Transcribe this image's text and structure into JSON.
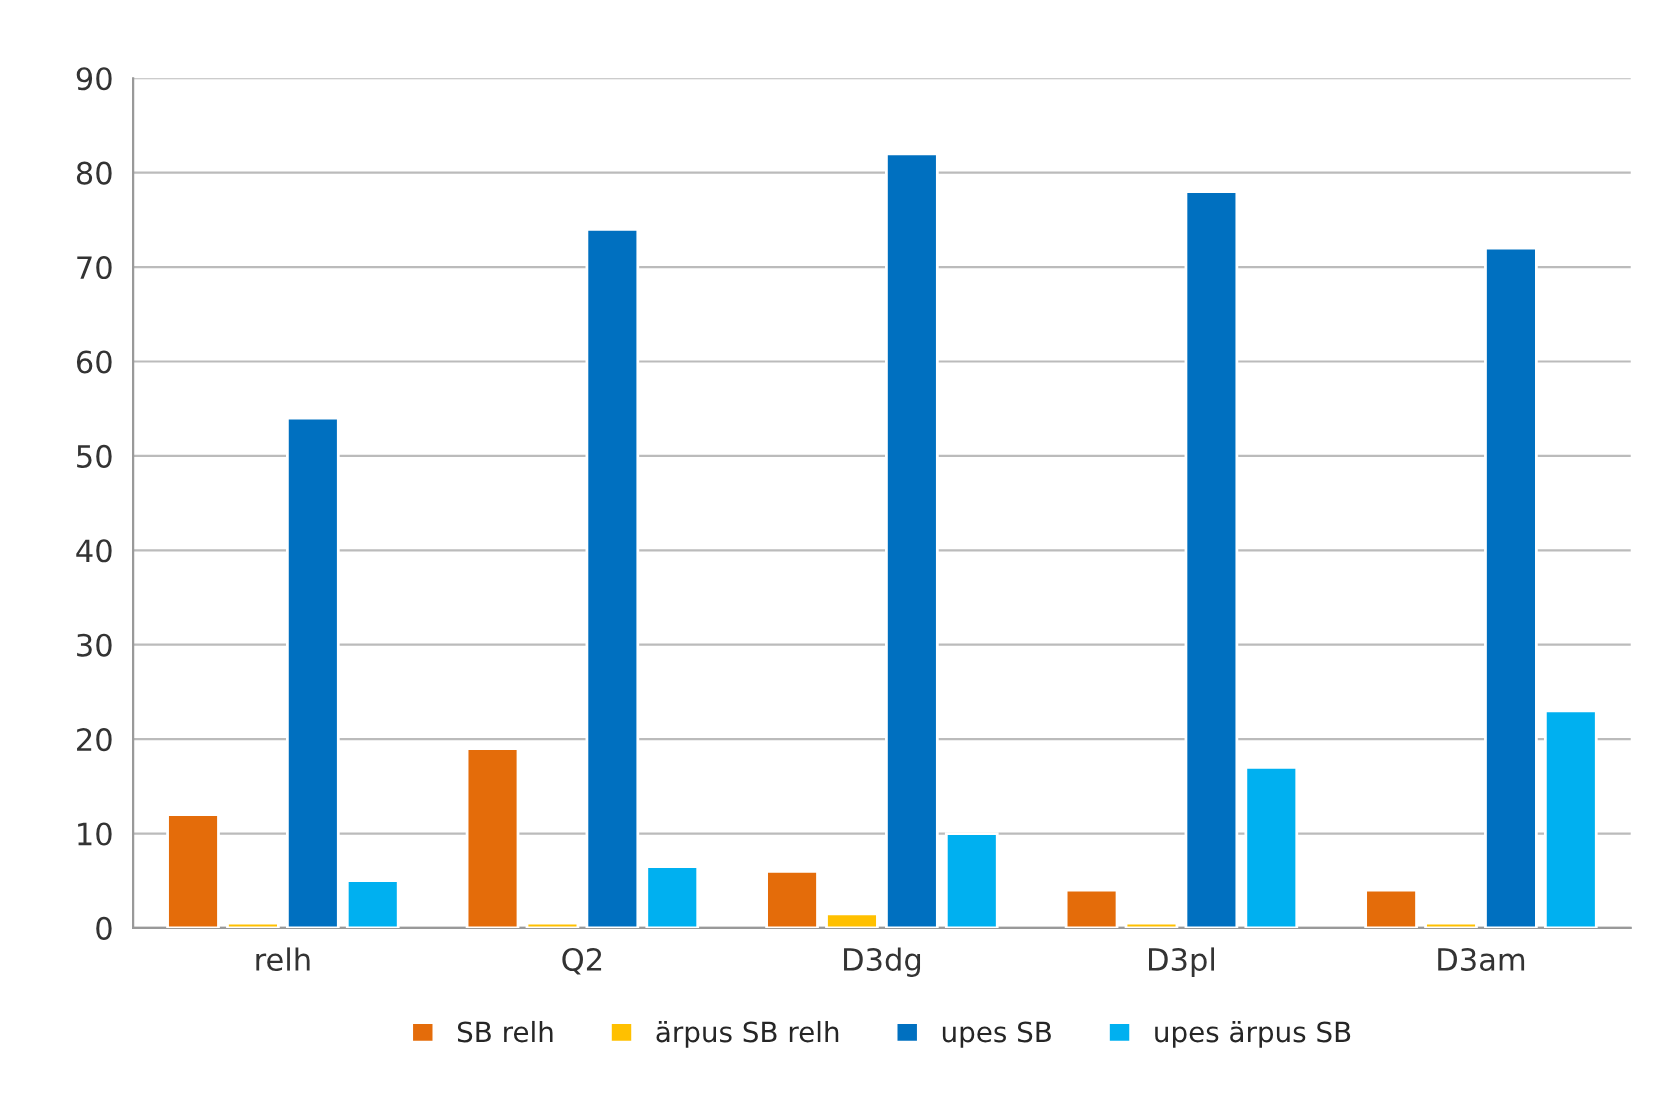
{
  "chart_data": {
    "type": "bar",
    "categories": [
      "relh",
      "Q2",
      "D3dg",
      "D3pl",
      "D3am"
    ],
    "series": [
      {
        "name": "SB relh",
        "color": "#e46c0a",
        "values": [
          12,
          19,
          6,
          4,
          4
        ]
      },
      {
        "name": "ärpus SB relh",
        "color": "#ffc000",
        "values": [
          0.5,
          0.5,
          1.5,
          0.5,
          0.5
        ]
      },
      {
        "name": "upes SB",
        "color": "#0070c0",
        "values": [
          54,
          74,
          82,
          78,
          72
        ]
      },
      {
        "name": "upes ärpus SB",
        "color": "#00b0f0",
        "values": [
          5,
          6.5,
          10,
          17,
          23
        ]
      }
    ],
    "ylim": [
      0,
      90
    ],
    "yticks": [
      0,
      10,
      20,
      30,
      40,
      50,
      60,
      70,
      80,
      90
    ],
    "grid": "y",
    "legend": "bottom"
  }
}
